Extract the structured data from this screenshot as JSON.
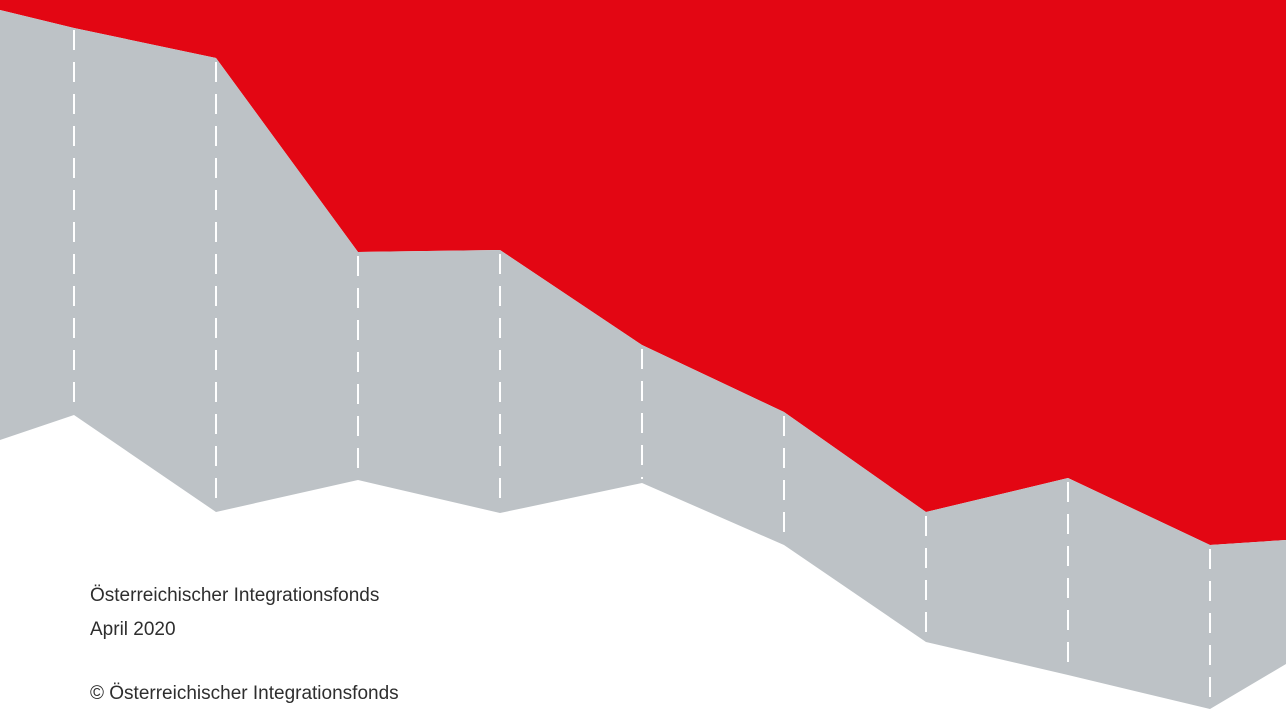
{
  "colors": {
    "red": "#e30613",
    "grey": "#bdc2c6",
    "fold_line": "#ffffff",
    "text": "#2e2e2e",
    "background": "#ffffff"
  },
  "footer": {
    "publisher": "Österreichischer Integrationsfonds",
    "date": "April 2020",
    "copyright": "© Österreichischer Integrationsfonds"
  }
}
